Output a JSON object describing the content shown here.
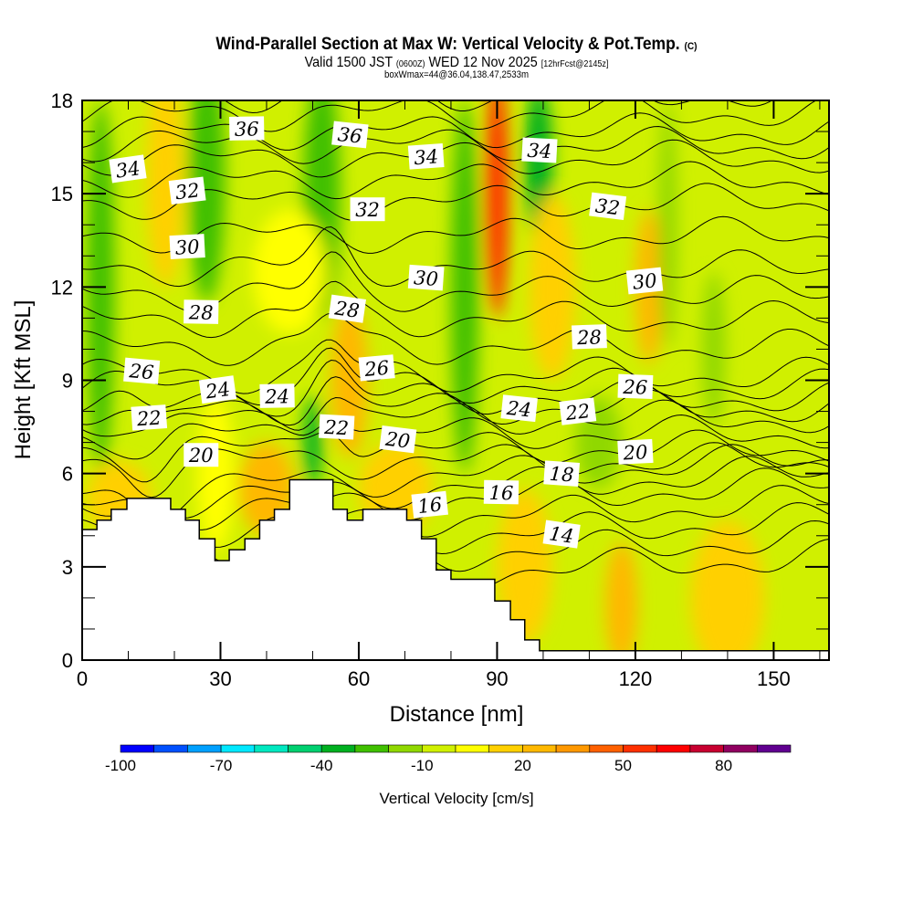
{
  "title": {
    "main": "Wind-Parallel Section at Max W: Vertical Velocity & Pot.Temp.",
    "copyright": "(C)",
    "valid_a": "Valid 1500 JST",
    "valid_z": "(0600Z)",
    "valid_b": "WED 12 Nov 2025",
    "fcst": "[12hrFcst@2145z]",
    "box": "boxWmax=44@36.04,138.47,2533m"
  },
  "chart_data": {
    "type": "heatmap",
    "xlabel": "Distance [nm]",
    "ylabel": "Height [Kft MSL]",
    "xlim": [
      0,
      162
    ],
    "ylim": [
      0,
      18
    ],
    "xticks": [
      "0",
      "30",
      "60",
      "90",
      "120",
      "150"
    ],
    "yticks": [
      "0",
      "3",
      "6",
      "9",
      "12",
      "15",
      "18"
    ],
    "colorbar": {
      "label": "Vertical Velocity [cm/s]",
      "range": [
        -100,
        100
      ],
      "step": 10,
      "tick_labels": [
        "-100",
        "-70",
        "-40",
        "-10",
        "20",
        "50",
        "80"
      ],
      "colors": [
        "#0000ff",
        "#0050ff",
        "#00a0ff",
        "#00e8ff",
        "#00e8c0",
        "#00d070",
        "#00b020",
        "#40c000",
        "#90d800",
        "#d0f000",
        "#ffff00",
        "#ffd000",
        "#ffb800",
        "#ff9800",
        "#ff6000",
        "#ff3000",
        "#ff0000",
        "#c80030",
        "#900060",
        "#600090"
      ]
    },
    "background_w": -5,
    "w_features": [
      {
        "d": 4,
        "h": 12,
        "dw": 3,
        "dh": 6,
        "w": -25
      },
      {
        "d": 18,
        "h": 15.5,
        "dw": 4,
        "dh": 3.5,
        "w": 15
      },
      {
        "d": 27,
        "h": 15.5,
        "dw": 4,
        "dh": 4,
        "w": -25
      },
      {
        "d": 8,
        "h": 5.2,
        "dw": 7,
        "dh": 1.2,
        "w": 15
      },
      {
        "d": 40,
        "h": 5.5,
        "dw": 6,
        "dh": 1.5,
        "w": 20
      },
      {
        "d": 29,
        "h": 6,
        "dw": 4,
        "dh": 2.5,
        "w": 5
      },
      {
        "d": 52,
        "h": 15,
        "dw": 4,
        "dh": 4,
        "w": -25
      },
      {
        "d": 50,
        "h": 7,
        "dw": 2,
        "dh": 1.5,
        "w": -40
      },
      {
        "d": 58,
        "h": 9,
        "dw": 4,
        "dh": 2.5,
        "w": 20
      },
      {
        "d": 45,
        "h": 12.5,
        "dw": 8,
        "dh": 2,
        "w": 5
      },
      {
        "d": 68,
        "h": 5.5,
        "dw": 8,
        "dh": 1.5,
        "w": 15
      },
      {
        "d": 83,
        "h": 12,
        "dw": 3,
        "dh": 6,
        "w": -30
      },
      {
        "d": 90,
        "h": 15,
        "dw": 2.5,
        "dh": 4,
        "w": 50
      },
      {
        "d": 99,
        "h": 16,
        "dw": 3,
        "dh": 2.5,
        "w": -40
      },
      {
        "d": 102,
        "h": 12,
        "dw": 5,
        "dh": 3,
        "w": 10
      },
      {
        "d": 96,
        "h": 3,
        "dw": 6,
        "dh": 2.5,
        "w": 10
      },
      {
        "d": 117,
        "h": 1.8,
        "dw": 3.5,
        "dh": 2,
        "w": 25
      },
      {
        "d": 123,
        "h": 12,
        "dw": 3,
        "dh": 2.5,
        "w": 20
      },
      {
        "d": 127,
        "h": 14,
        "dw": 2,
        "dh": 4,
        "w": -20
      },
      {
        "d": 137,
        "h": 10,
        "dw": 2.5,
        "dh": 2.5,
        "w": -20
      },
      {
        "d": 140,
        "h": 2,
        "dw": 8,
        "dh": 2.5,
        "w": 10
      },
      {
        "d": 112,
        "h": 7,
        "dw": 5,
        "dh": 1.5,
        "w": -20
      },
      {
        "d": 155,
        "h": 13,
        "dw": 6,
        "dh": 5,
        "w": -10
      }
    ],
    "terrain": [
      [
        0,
        4.2
      ],
      [
        3.2,
        4.5
      ],
      [
        6.3,
        4.85
      ],
      [
        9.7,
        5.2
      ],
      [
        19.2,
        4.85
      ],
      [
        22.4,
        4.5
      ],
      [
        25.4,
        3.9
      ],
      [
        28.8,
        3.2
      ],
      [
        31.9,
        3.55
      ],
      [
        35.3,
        3.9
      ],
      [
        38.5,
        4.5
      ],
      [
        41.7,
        4.85
      ],
      [
        45,
        5.8
      ],
      [
        54.4,
        4.85
      ],
      [
        57.5,
        4.5
      ],
      [
        60.9,
        4.85
      ],
      [
        70.4,
        4.5
      ],
      [
        73.6,
        3.9
      ],
      [
        76.8,
        2.9
      ],
      [
        80,
        2.6
      ],
      [
        89.5,
        1.9
      ],
      [
        92.9,
        1.3
      ],
      [
        96,
        0.65
      ],
      [
        99.2,
        0.3
      ],
      [
        162,
        0.3
      ]
    ],
    "theta_contours": {
      "units": "degC",
      "interval": 1,
      "labels": [
        {
          "v": "34",
          "d": 9.9,
          "h": 15.8
        },
        {
          "v": "36",
          "d": 35.7,
          "h": 17.1
        },
        {
          "v": "36",
          "d": 58.1,
          "h": 16.9
        },
        {
          "v": "34",
          "d": 74.6,
          "h": 16.2
        },
        {
          "v": "34",
          "d": 99.2,
          "h": 16.4
        },
        {
          "v": "32",
          "d": 22.8,
          "h": 15.1
        },
        {
          "v": "32",
          "d": 61.9,
          "h": 14.5
        },
        {
          "v": "32",
          "d": 114,
          "h": 14.6
        },
        {
          "v": "30",
          "d": 22.8,
          "h": 13.3
        },
        {
          "v": "30",
          "d": 74.6,
          "h": 12.3
        },
        {
          "v": "30",
          "d": 122,
          "h": 12.2
        },
        {
          "v": "28",
          "d": 25.8,
          "h": 11.2
        },
        {
          "v": "28",
          "d": 57.5,
          "h": 11.3
        },
        {
          "v": "28",
          "d": 110,
          "h": 10.4
        },
        {
          "v": "26",
          "d": 12.9,
          "h": 9.3
        },
        {
          "v": "26",
          "d": 63.9,
          "h": 9.4
        },
        {
          "v": "26",
          "d": 120,
          "h": 8.8
        },
        {
          "v": "24",
          "d": 29.4,
          "h": 8.7
        },
        {
          "v": "24",
          "d": 42.3,
          "h": 8.5
        },
        {
          "v": "24",
          "d": 94.8,
          "h": 8.1
        },
        {
          "v": "22",
          "d": 14.5,
          "h": 7.8
        },
        {
          "v": "22",
          "d": 55.2,
          "h": 7.5
        },
        {
          "v": "22",
          "d": 107.5,
          "h": 8.0
        },
        {
          "v": "20",
          "d": 25.8,
          "h": 6.6
        },
        {
          "v": "20",
          "d": 68.5,
          "h": 7.1
        },
        {
          "v": "20",
          "d": 120,
          "h": 6.7
        },
        {
          "v": "18",
          "d": 104,
          "h": 6.0
        },
        {
          "v": "16",
          "d": 75.4,
          "h": 5.0
        },
        {
          "v": "16",
          "d": 90.9,
          "h": 5.4
        },
        {
          "v": "14",
          "d": 104,
          "h": 4.05
        }
      ]
    }
  }
}
